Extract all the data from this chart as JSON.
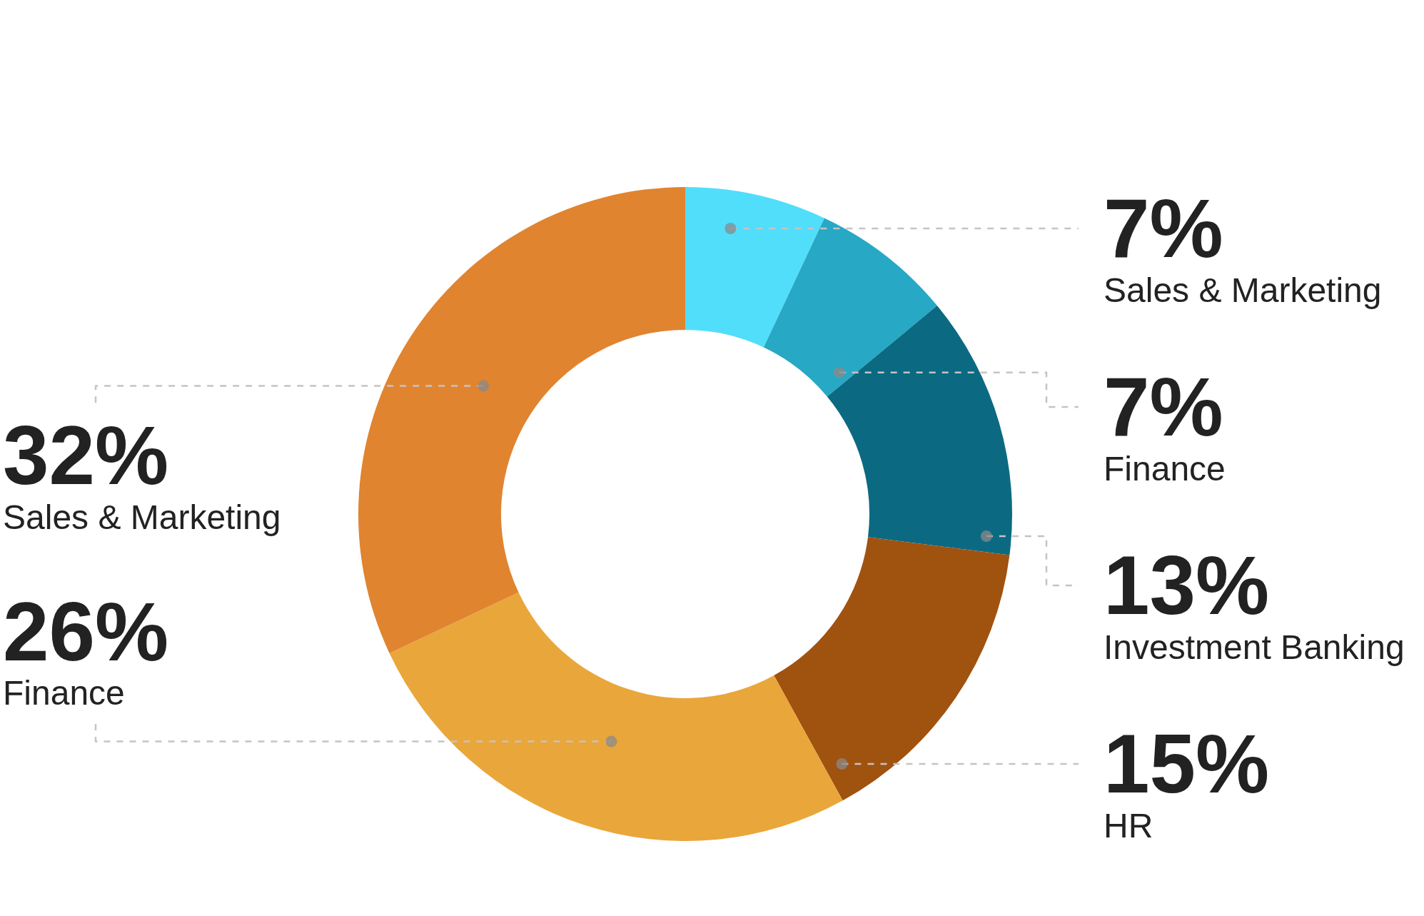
{
  "chart_data": {
    "type": "donut",
    "categories": [
      "Sales & Marketing",
      "Finance",
      "Investment Banking",
      "HR",
      "Finance",
      "Sales & Marketing"
    ],
    "values": [
      7,
      7,
      13,
      15,
      26,
      32
    ],
    "value_labels": [
      "7%",
      "7%",
      "13%",
      "15%",
      "26%",
      "32%"
    ],
    "colors": [
      "#51defb",
      "#27a8c5",
      "#0b6a82",
      "#a0520f",
      "#e9a63b",
      "#e08430"
    ]
  }
}
